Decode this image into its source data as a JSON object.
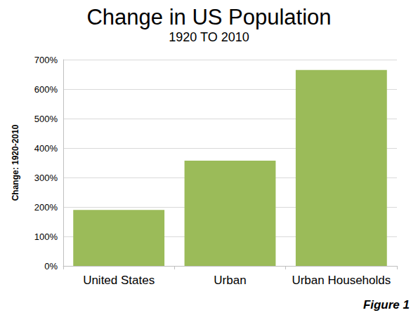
{
  "chart_data": {
    "type": "bar",
    "title": "Change in US Population",
    "subtitle": "1920 TO 2010",
    "y_label": "Change: 1920-2010",
    "annotations": [
      "Figure 1"
    ],
    "categories": [
      "United States",
      "Urban",
      "Urban Households"
    ],
    "values": [
      190,
      357,
      665
    ],
    "color": "#9bbb59",
    "ylim": [
      0,
      700
    ],
    "yticks": [
      {
        "value": 0,
        "label": "0%"
      },
      {
        "value": 100,
        "label": "100%"
      },
      {
        "value": 200,
        "label": "200%"
      },
      {
        "value": 300,
        "label": "300%"
      },
      {
        "value": 400,
        "label": "400%"
      },
      {
        "value": 500,
        "label": "500%"
      },
      {
        "value": 600,
        "label": "600%"
      },
      {
        "value": 700,
        "label": "700%"
      }
    ],
    "grid": true
  }
}
